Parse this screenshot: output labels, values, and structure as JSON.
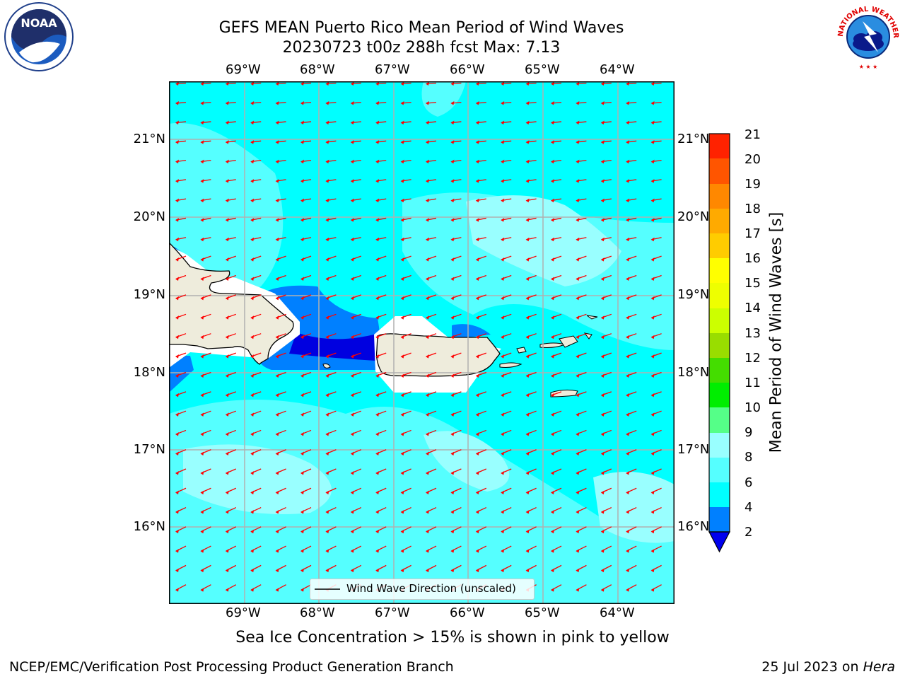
{
  "header": {
    "title_line1": "GEFS MEAN Puerto Rico Mean Period of Wind Waves",
    "title_line2": "20230723 t00z 288h fcst   Max: 7.13"
  },
  "map": {
    "lon_labels": [
      "69°W",
      "68°W",
      "67°W",
      "66°W",
      "65°W",
      "64°W"
    ],
    "lat_labels": [
      "21°N",
      "20°N",
      "19°N",
      "18°N",
      "17°N",
      "16°N"
    ],
    "legend_label": "Wind Wave Direction (unscaled)",
    "colors": {
      "sea_light": "#99ffff",
      "sea_mid": "#55ffff",
      "sea_cyan": "#00ffff",
      "sea_blue": "#0080ff",
      "sea_dark": "#0000e0",
      "land": "#eeecdc",
      "arrow": "#ff0000"
    }
  },
  "colorbar": {
    "title": "Mean Period of Wind Waves [s]",
    "ticks": [
      "2",
      "4",
      "6",
      "8",
      "9",
      "10",
      "11",
      "12",
      "13",
      "14",
      "15",
      "16",
      "17",
      "18",
      "19",
      "20",
      "21"
    ],
    "colors": [
      "#0080ff",
      "#00ffff",
      "#55ffff",
      "#99ffff",
      "#55ff88",
      "#00ee00",
      "#44dd00",
      "#99dd00",
      "#ccff00",
      "#eeff00",
      "#ffff00",
      "#ffcc00",
      "#ffaa00",
      "#ff8800",
      "#ff5500",
      "#ff2200"
    ],
    "under_color": "#0000ee",
    "over_color": "#ff0000"
  },
  "subnote": "Sea Ice Concentration > 15% is shown in pink to yellow",
  "footer": {
    "left": "NCEP/EMC/Verification Post Processing Product Generation Branch",
    "date": "25 Jul 2023 on ",
    "machine": "Hera"
  },
  "logos": {
    "noaa_text": "NOAA",
    "nws_text": "NATIONAL WEATHER SERVICE"
  }
}
